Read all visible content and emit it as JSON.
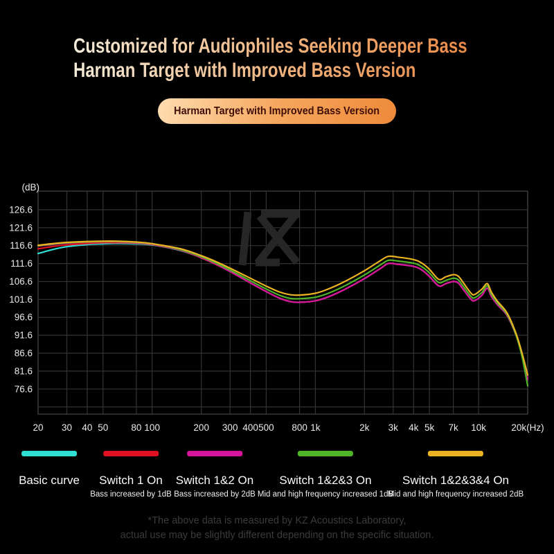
{
  "header": {
    "title_line1": "Customized for Audiophiles Seeking Deeper Bass",
    "title_line2": "Harman Target with Improved Bass Version",
    "badge": "Harman Target with Improved Bass Version",
    "title_gradient": [
      "#f4ecda",
      "#ea8b49"
    ],
    "badge_gradient": [
      "#ffddb0",
      "#ee8a3a"
    ],
    "badge_text_color": "#3f0e06"
  },
  "chart_data": {
    "type": "line",
    "x_scale": "log",
    "unit_label": "(dB)",
    "xlim_hz": [
      20,
      20000
    ],
    "ylim_db": [
      69.6,
      131.8
    ],
    "grid_on": true,
    "grid_color": "#333333",
    "border_color": "#3c3c3c",
    "tick_text_color": "#e9e9e9",
    "watermark": "KZ",
    "watermark_color": "#262626",
    "y_ticks_db": [
      126.6,
      121.6,
      116.6,
      111.6,
      106.6,
      101.6,
      96.6,
      91.6,
      86.6,
      81.6,
      76.6
    ],
    "y_grid_extra_db": [
      71.6
    ],
    "x_ticks": [
      {
        "hz": 20,
        "label": "20"
      },
      {
        "hz": 30,
        "label": "30"
      },
      {
        "hz": 40,
        "label": "40"
      },
      {
        "hz": 50,
        "label": "50"
      },
      {
        "hz": 80,
        "label": "80"
      },
      {
        "hz": 100,
        "label": "100"
      },
      {
        "hz": 200,
        "label": "200"
      },
      {
        "hz": 300,
        "label": "300"
      },
      {
        "hz": 400,
        "label": "400"
      },
      {
        "hz": 500,
        "label": "500"
      },
      {
        "hz": 800,
        "label": "800"
      },
      {
        "hz": 1000,
        "label": "1k"
      },
      {
        "hz": 2000,
        "label": "2k"
      },
      {
        "hz": 3000,
        "label": "3k"
      },
      {
        "hz": 4000,
        "label": "4k"
      },
      {
        "hz": 5000,
        "label": "5k"
      },
      {
        "hz": 7000,
        "label": "7k"
      },
      {
        "hz": 10000,
        "label": "10k"
      },
      {
        "hz": 20000,
        "label": "20k(Hz)"
      }
    ],
    "frequencies_hz": [
      20,
      25,
      30,
      40,
      50,
      60,
      80,
      100,
      150,
      200,
      250,
      300,
      400,
      500,
      600,
      700,
      800,
      1000,
      1200,
      1500,
      2000,
      2500,
      2800,
      3200,
      4000,
      4500,
      5000,
      5700,
      6300,
      7000,
      7500,
      8000,
      9000,
      9500,
      10500,
      11300,
      12000,
      13000,
      15000,
      17000,
      18500,
      20000
    ],
    "series": [
      {
        "name": "Basic curve",
        "color": "#30dfd4",
        "values": [
          114.4,
          115.6,
          116.3,
          116.9,
          117.1,
          117.2,
          117.1,
          116.8,
          115.2,
          113.2,
          111.2,
          109.4,
          106.2,
          103.8,
          102.0,
          101.0,
          100.8,
          101.2,
          102.3,
          104.3,
          107.4,
          110.2,
          111.6,
          111.4,
          110.8,
          109.8,
          108.0,
          105.4,
          106.0,
          106.6,
          106.2,
          104.6,
          101.6,
          101.3,
          102.8,
          104.7,
          102.4,
          100.2,
          97.0,
          91.5,
          86.0,
          79.5
        ]
      },
      {
        "name": "Switch 1 On",
        "color": "#df1022",
        "values": [
          115.7,
          116.4,
          116.8,
          117.2,
          117.4,
          117.4,
          117.3,
          116.9,
          115.3,
          113.2,
          111.2,
          109.4,
          106.2,
          103.8,
          102.0,
          101.0,
          100.8,
          101.2,
          102.3,
          104.3,
          107.4,
          110.2,
          111.6,
          111.4,
          110.8,
          109.8,
          108.0,
          105.4,
          106.0,
          106.6,
          106.2,
          104.6,
          101.6,
          101.3,
          102.8,
          104.7,
          102.4,
          100.2,
          97.0,
          91.5,
          86.0,
          79.5
        ]
      },
      {
        "name": "Switch 1&2 On",
        "color": "#d5169c",
        "values": [
          116.5,
          117.0,
          117.3,
          117.6,
          117.7,
          117.7,
          117.4,
          117.0,
          115.4,
          113.3,
          111.3,
          109.4,
          106.2,
          103.8,
          102.0,
          101.0,
          100.8,
          101.2,
          102.3,
          104.3,
          107.4,
          110.2,
          111.6,
          111.4,
          110.8,
          109.8,
          108.0,
          105.4,
          106.0,
          106.6,
          106.2,
          104.6,
          101.6,
          101.3,
          102.8,
          104.7,
          102.4,
          100.2,
          97.0,
          91.5,
          86.0,
          79.2
        ]
      },
      {
        "name": "Switch 1&2&3 On",
        "color": "#50b42a",
        "values": [
          116.6,
          117.1,
          117.4,
          117.65,
          117.75,
          117.75,
          117.5,
          117.1,
          115.5,
          113.5,
          111.6,
          109.8,
          106.8,
          104.5,
          102.8,
          101.9,
          101.8,
          102.2,
          103.3,
          105.3,
          108.4,
          111.2,
          112.5,
          112.3,
          111.7,
          110.7,
          109.0,
          106.3,
          106.9,
          107.5,
          107.1,
          105.5,
          102.4,
          102.1,
          103.6,
          105.4,
          103.0,
          100.7,
          97.3,
          91.5,
          85.5,
          77.5
        ]
      },
      {
        "name": "Switch 1&2&3&4 On",
        "color": "#e9b322",
        "values": [
          116.7,
          117.2,
          117.5,
          117.75,
          117.85,
          117.85,
          117.6,
          117.15,
          115.7,
          113.8,
          112.0,
          110.3,
          107.5,
          105.3,
          103.7,
          102.9,
          102.8,
          103.3,
          104.5,
          106.5,
          109.6,
          112.4,
          113.6,
          113.4,
          112.7,
          111.7,
          110.0,
          107.2,
          107.9,
          108.5,
          108.1,
          106.5,
          103.3,
          103.0,
          104.5,
          106.0,
          103.6,
          101.2,
          97.7,
          92.0,
          86.5,
          80.5
        ]
      }
    ]
  },
  "legend": {
    "items": [
      {
        "label": "Basic curve",
        "sublabel": "",
        "color": "#30dfd4"
      },
      {
        "label": "Switch 1 On",
        "sublabel": "Bass increased by 1dB",
        "color": "#df1022"
      },
      {
        "label": "Switch 1&2 On",
        "sublabel": "Bass increased by 2dB",
        "color": "#d5169c"
      },
      {
        "label": "Switch 1&2&3 On",
        "sublabel": "Mid and high frequency increased 1dB",
        "color": "#50b42a"
      },
      {
        "label": "Switch 1&2&3&4 On",
        "sublabel": "Mid and high frequency increased 2dB",
        "color": "#e9b322"
      }
    ]
  },
  "footer": {
    "line1": "*The above data is measured by KZ Acoustics Laboratory,",
    "line2": "actual use may be slightly different depending on the specific situation."
  }
}
